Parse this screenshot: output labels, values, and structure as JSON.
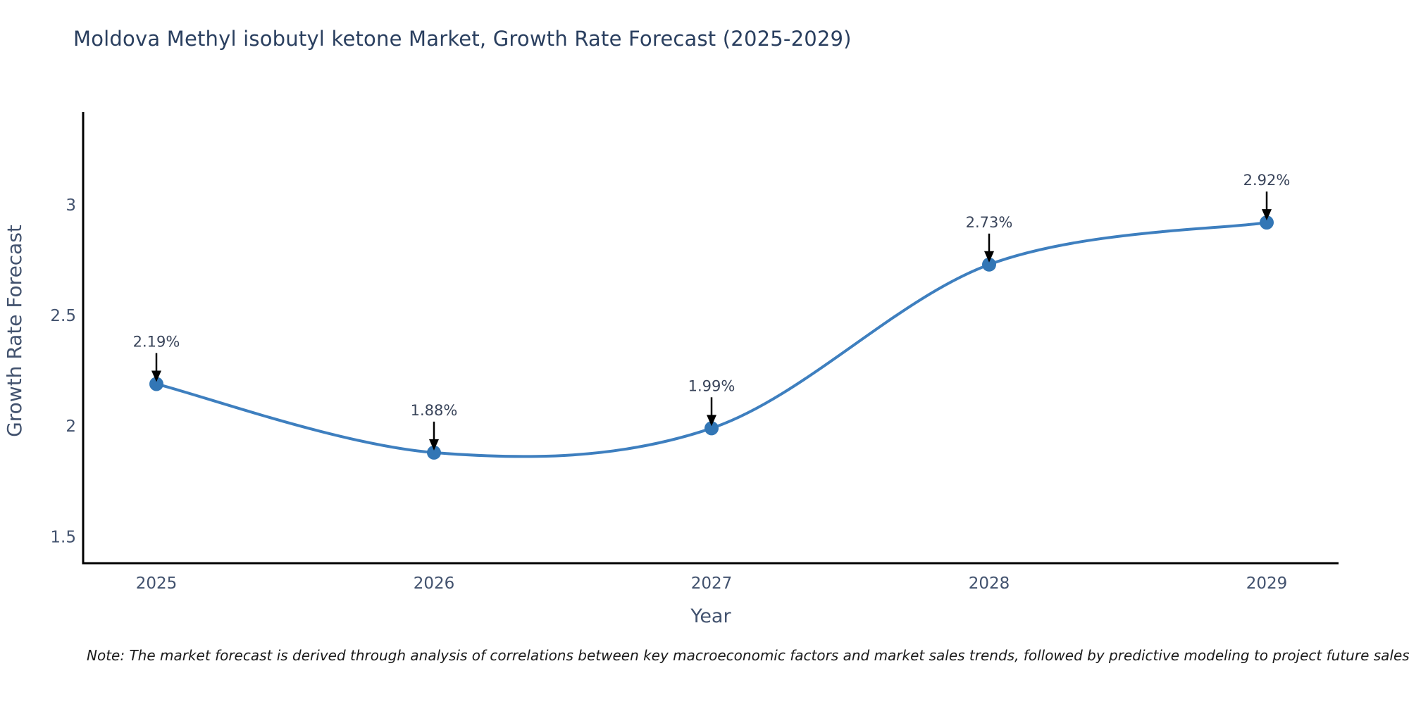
{
  "title": "Moldova Methyl isobutyl ketone Market, Growth Rate Forecast (2025-2029)",
  "note": "Note: The market forecast is derived through analysis of correlations between key macroeconomic factors and market sales trends, followed by predictive modeling to project future sales",
  "chart_data": {
    "type": "line",
    "title": "Moldova Methyl isobutyl ketone Market, Growth Rate Forecast (2025-2029)",
    "categories": [
      "2025",
      "2026",
      "2027",
      "2028",
      "2029"
    ],
    "series": [
      {
        "name": "Growth Rate Forecast",
        "values": [
          2.19,
          1.88,
          1.99,
          2.73,
          2.92
        ]
      }
    ],
    "point_labels": [
      "2.19%",
      "1.88%",
      "1.99%",
      "2.73%",
      "2.92%"
    ],
    "xlabel": "Year",
    "ylabel": "Growth Rate Forecast",
    "yticks": [
      1.5,
      2,
      2.5,
      3
    ],
    "ylim": [
      1.38,
      3.42
    ],
    "grid": false,
    "legend": "none",
    "line_shape": "spline",
    "annotation_style": "value label above point with downward black arrow",
    "colors": {
      "line": "#3e7fbf",
      "marker": "#3276b5",
      "axis": "#000000",
      "tick_label": "#42526e",
      "title": "#2a3f5f",
      "annotation": "#39445a",
      "arrow": "#000000"
    }
  }
}
